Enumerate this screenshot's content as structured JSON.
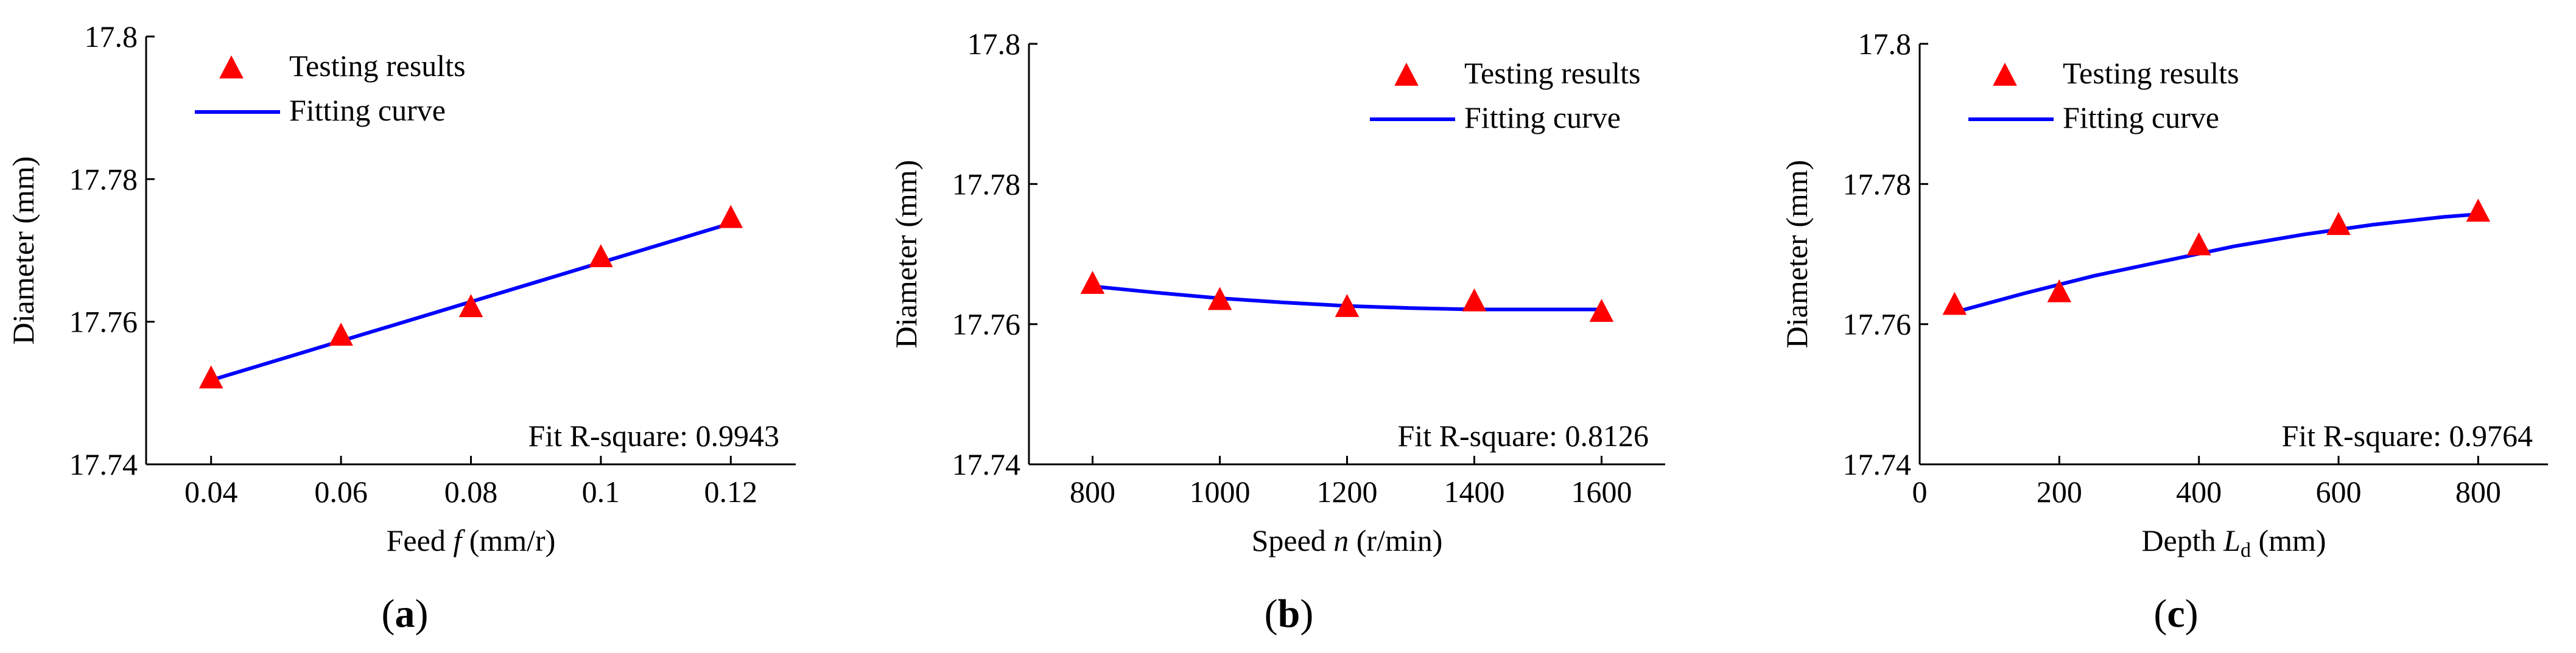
{
  "colors": {
    "marker": "#ff0000",
    "curve": "#0000ff",
    "axis": "#000000"
  },
  "chart_data": [
    {
      "id": "a",
      "type": "scatter",
      "panel_label": {
        "open": "(",
        "letter": "a",
        "close": ")"
      },
      "xlabel": {
        "pre": "Feed ",
        "var": "f",
        "sub": "",
        "post": " (mm/r)"
      },
      "ylabel": "Diameter (mm)",
      "xlim": [
        0.03,
        0.13
      ],
      "ylim": [
        17.74,
        17.8
      ],
      "xticks": [
        0.04,
        0.06,
        0.08,
        0.1,
        0.12
      ],
      "xtick_labels": [
        "0.04",
        "0.06",
        "0.08",
        "0.1",
        "0.12"
      ],
      "yticks": [
        17.74,
        17.76,
        17.78,
        17.8
      ],
      "ytick_labels": [
        "17.74",
        "17.76",
        "17.78",
        "17.8"
      ],
      "legend": {
        "position": "top-left",
        "markers_label": "Testing results",
        "curve_label": "Fitting curve"
      },
      "annotation": "Fit R-square: 0.9943",
      "series": [
        {
          "name": "Testing results",
          "kind": "markers",
          "x": [
            0.04,
            0.06,
            0.08,
            0.1,
            0.12
          ],
          "y": [
            17.752,
            17.758,
            17.762,
            17.769,
            17.7745
          ]
        },
        {
          "name": "Fitting curve",
          "kind": "line",
          "x": [
            0.04,
            0.06,
            0.08,
            0.1,
            0.12
          ],
          "y": [
            17.7518,
            17.7573,
            17.7628,
            17.7683,
            17.7738
          ]
        }
      ]
    },
    {
      "id": "b",
      "type": "scatter",
      "panel_label": {
        "open": "(",
        "letter": "b",
        "close": ")"
      },
      "xlabel": {
        "pre": "Speed ",
        "var": "n",
        "sub": "",
        "post": " (r/min)"
      },
      "ylabel": "Diameter (mm)",
      "xlim": [
        700,
        1700
      ],
      "ylim": [
        17.74,
        17.8
      ],
      "xticks": [
        800,
        1000,
        1200,
        1400,
        1600
      ],
      "xtick_labels": [
        "800",
        "1000",
        "1200",
        "1400",
        "1600"
      ],
      "yticks": [
        17.74,
        17.76,
        17.78,
        17.8
      ],
      "ytick_labels": [
        "17.74",
        "17.76",
        "17.78",
        "17.8"
      ],
      "legend": {
        "position": "top-right",
        "markers_label": "Testing results",
        "curve_label": "Fitting curve"
      },
      "annotation": "Fit R-square: 0.8126",
      "series": [
        {
          "name": "Testing results",
          "kind": "markers",
          "x": [
            800,
            1000,
            1200,
            1400,
            1600
          ],
          "y": [
            17.7657,
            17.7634,
            17.7624,
            17.7632,
            17.7617
          ]
        },
        {
          "name": "Fitting curve",
          "kind": "line",
          "x": [
            800,
            900,
            1000,
            1100,
            1200,
            1300,
            1400,
            1500,
            1600
          ],
          "y": [
            17.7654,
            17.7645,
            17.7637,
            17.7631,
            17.7626,
            17.7623,
            17.7621,
            17.7621,
            17.7621
          ]
        }
      ]
    },
    {
      "id": "c",
      "type": "scatter",
      "panel_label": {
        "open": "(",
        "letter": "c",
        "close": ")"
      },
      "xlabel": {
        "pre": "Depth ",
        "var": "L",
        "sub": "d",
        "post": " (mm)"
      },
      "ylabel": "Diameter (mm)",
      "xlim": [
        0,
        900
      ],
      "ylim": [
        17.74,
        17.8
      ],
      "xticks": [
        0,
        200,
        400,
        600,
        800
      ],
      "xtick_labels": [
        "0",
        "200",
        "400",
        "600",
        "800"
      ],
      "yticks": [
        17.74,
        17.76,
        17.78,
        17.8
      ],
      "ytick_labels": [
        "17.74",
        "17.76",
        "17.78",
        "17.8"
      ],
      "legend": {
        "position": "top-left",
        "markers_label": "Testing results",
        "curve_label": "Fitting curve"
      },
      "annotation": "Fit R-square: 0.9764",
      "series": [
        {
          "name": "Testing results",
          "kind": "markers",
          "x": [
            50,
            200,
            400,
            600,
            800
          ],
          "y": [
            17.7627,
            17.7645,
            17.7712,
            17.7741,
            17.776
          ]
        },
        {
          "name": "Fitting curve",
          "kind": "line",
          "x": [
            50,
            150,
            250,
            350,
            450,
            550,
            650,
            750,
            800
          ],
          "y": [
            17.7617,
            17.7644,
            17.7669,
            17.769,
            17.7711,
            17.7728,
            17.7742,
            17.7753,
            17.7757
          ]
        }
      ]
    }
  ]
}
